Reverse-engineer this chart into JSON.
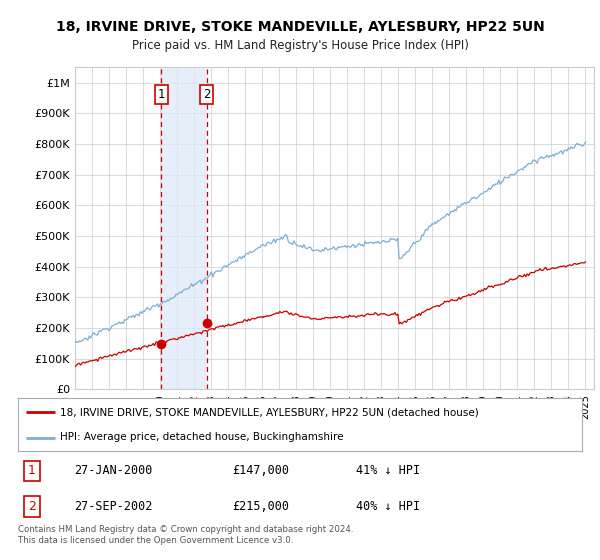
{
  "title": "18, IRVINE DRIVE, STOKE MANDEVILLE, AYLESBURY, HP22 5UN",
  "subtitle": "Price paid vs. HM Land Registry's House Price Index (HPI)",
  "xlim_start": 1995.0,
  "xlim_end": 2025.5,
  "ylim": [
    0,
    1050000
  ],
  "yticks": [
    0,
    100000,
    200000,
    300000,
    400000,
    500000,
    600000,
    700000,
    800000,
    900000,
    1000000
  ],
  "ytick_labels": [
    "£0",
    "£100K",
    "£200K",
    "£300K",
    "£400K",
    "£500K",
    "£600K",
    "£700K",
    "£800K",
    "£900K",
    "£1M"
  ],
  "transaction1_x": 2000.07,
  "transaction1_y": 147000,
  "transaction1_label": "1",
  "transaction2_x": 2002.74,
  "transaction2_y": 215000,
  "transaction2_label": "2",
  "highlight_color": "#dce8f8",
  "highlight_alpha": 0.7,
  "vline_color": "#cc0000",
  "hpi_line_color": "#7bafd4",
  "price_line_color": "#cc0000",
  "legend_label_price": "18, IRVINE DRIVE, STOKE MANDEVILLE, AYLESBURY, HP22 5UN (detached house)",
  "legend_label_hpi": "HPI: Average price, detached house, Buckinghamshire",
  "table_rows": [
    {
      "num": "1",
      "date": "27-JAN-2000",
      "price": "£147,000",
      "hpi": "41% ↓ HPI"
    },
    {
      "num": "2",
      "date": "27-SEP-2002",
      "price": "£215,000",
      "hpi": "40% ↓ HPI"
    }
  ],
  "footer": "Contains HM Land Registry data © Crown copyright and database right 2024.\nThis data is licensed under the Open Government Licence v3.0.",
  "background_color": "#ffffff",
  "grid_color": "#cccccc"
}
